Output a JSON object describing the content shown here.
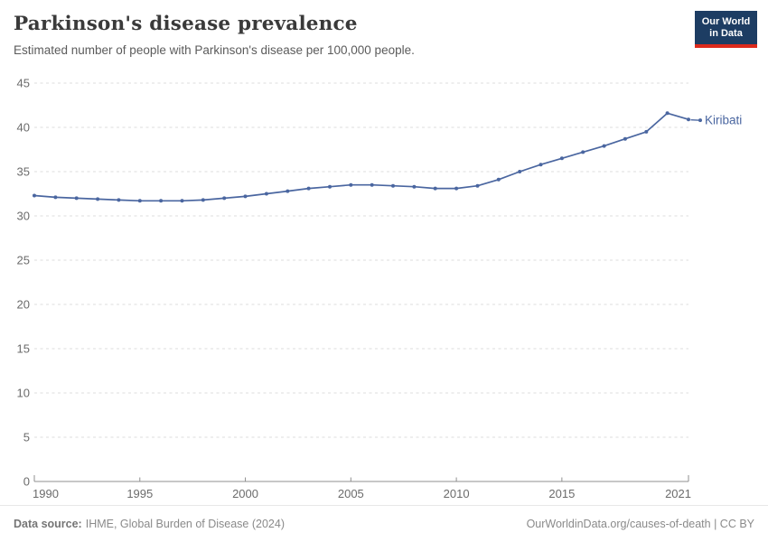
{
  "header": {
    "title": "Parkinson's disease prevalence",
    "subtitle": "Estimated number of people with Parkinson's disease per 100,000 people.",
    "logo": {
      "line1": "Our World",
      "line2": "in Data"
    }
  },
  "chart_data": {
    "type": "line",
    "title": "Parkinson's disease prevalence",
    "xlabel": "",
    "ylabel": "Estimated number of people with Parkinson's disease per 100,000 people",
    "xlim": [
      1990,
      2021
    ],
    "ylim": [
      0,
      45
    ],
    "x_ticks": [
      1990,
      1995,
      2000,
      2005,
      2010,
      2015,
      2021
    ],
    "y_ticks": [
      0,
      5,
      10,
      15,
      20,
      25,
      30,
      35,
      40,
      45
    ],
    "grid": "horizontal-dashed",
    "legend_position": "end-of-line-label",
    "x": [
      1990,
      1991,
      1992,
      1993,
      1994,
      1995,
      1996,
      1997,
      1998,
      1999,
      2000,
      2001,
      2002,
      2003,
      2004,
      2005,
      2006,
      2007,
      2008,
      2009,
      2010,
      2011,
      2012,
      2013,
      2014,
      2015,
      2016,
      2017,
      2018,
      2019,
      2020,
      2021
    ],
    "series": [
      {
        "name": "Kiribati",
        "values": [
          32.3,
          32.1,
          32.0,
          31.9,
          31.8,
          31.7,
          31.7,
          31.7,
          31.8,
          32.0,
          32.2,
          32.5,
          32.8,
          33.1,
          33.3,
          33.5,
          33.5,
          33.4,
          33.3,
          33.1,
          33.1,
          33.4,
          34.1,
          35.0,
          35.8,
          36.5,
          37.2,
          37.9,
          38.7,
          39.5,
          41.6,
          40.9
        ]
      }
    ],
    "colors": {
      "line": "#4a66a0",
      "axis": "#8f8f8f",
      "grid": "#dcdcdc",
      "tick_label": "#6b6b6b"
    }
  },
  "footer": {
    "source_label": "Data source:",
    "source_text": "IHME, Global Burden of Disease (2024)",
    "credit": "OurWorldinData.org/causes-of-death | CC BY"
  }
}
